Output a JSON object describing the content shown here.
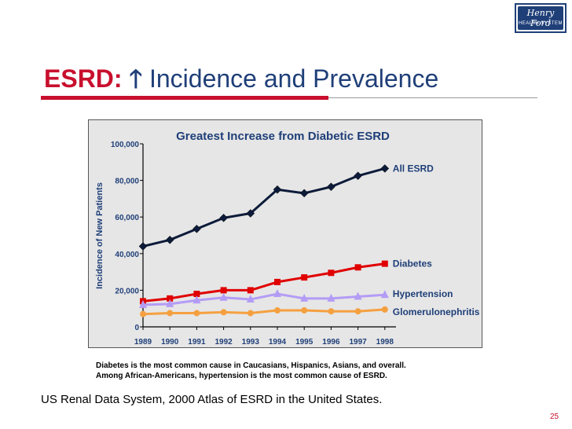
{
  "header": {
    "logo_text": "Henry Ford",
    "logo_subtext": "HEALTH SYSTEM",
    "title_prefix": "ESRD:",
    "title_arrow": "🡑",
    "title_main": "Incidence and Prevalence"
  },
  "colors": {
    "accent_red": "#c8102e",
    "navy": "#1f3f78",
    "series_all": "#0d1b3a",
    "series_diabetes": "#e00000",
    "series_hypertension": "#b39cf5",
    "series_glomerulo": "#f5a040"
  },
  "chart_data": {
    "type": "line",
    "title": "Greatest Increase from Diabetic ESRD",
    "xlabel": "",
    "ylabel": "Incidence of New Patients",
    "ylim": [
      0,
      100000
    ],
    "yticks": [
      "0",
      "20,000",
      "40,000",
      "60,000",
      "80,000",
      "100,000"
    ],
    "x": [
      "1989",
      "1990",
      "1991",
      "1992",
      "1993",
      "1994",
      "1995",
      "1996",
      "1997",
      "1998"
    ],
    "series": [
      {
        "name": "All ESRD",
        "color": "#0d1b3a",
        "marker": "diamond",
        "values": [
          44000,
          47500,
          53500,
          59500,
          62000,
          75000,
          73000,
          76500,
          82500,
          86500
        ]
      },
      {
        "name": "Diabetes",
        "color": "#e00000",
        "marker": "square",
        "values": [
          14000,
          15500,
          18000,
          20000,
          20000,
          24500,
          27000,
          29500,
          32500,
          34500
        ]
      },
      {
        "name": "Hypertension",
        "color": "#b39cf5",
        "marker": "triangle",
        "values": [
          12000,
          12500,
          14500,
          16000,
          15000,
          18000,
          15500,
          15500,
          16500,
          17500
        ]
      },
      {
        "name": "Glomerulonephritis",
        "color": "#f5a040",
        "marker": "circle",
        "values": [
          7000,
          7500,
          7500,
          8000,
          7500,
          9000,
          9000,
          8500,
          8500,
          9500
        ]
      }
    ]
  },
  "notes": {
    "line1": "Diabetes is the most common cause in Caucasians, Hispanics, Asians, and overall.",
    "line2": "Among African-Americans, hypertension is the most common cause of ESRD."
  },
  "citation": "US Renal Data System, 2000 Atlas of ESRD in the United States.",
  "page_number": "25"
}
